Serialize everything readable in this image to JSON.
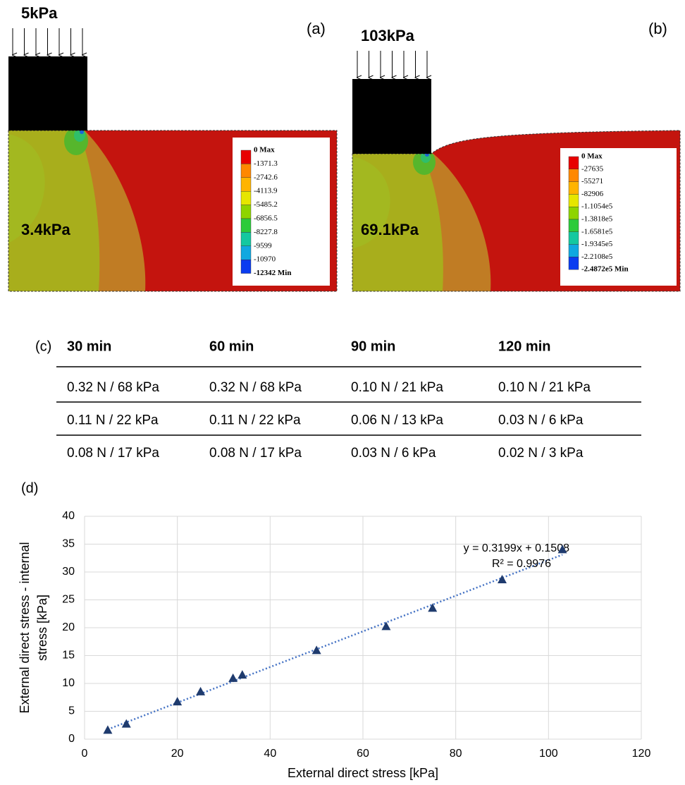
{
  "panel_a": {
    "label": "(a)",
    "load": "5kPa",
    "internal": "3.4kPa",
    "legend": [
      "0 Max",
      "-1371.3",
      "-2742.6",
      "-4113.9",
      "-5485.2",
      "-6856.5",
      "-8227.8",
      "-9599",
      "-10970",
      "-12342 Min"
    ]
  },
  "panel_b": {
    "label": "(b)",
    "load": "103kPa",
    "internal": "69.1kPa",
    "legend": [
      "0 Max",
      "-27635",
      "-55271",
      "-82906",
      "-1.1054e5",
      "-1.3818e5",
      "-1.6581e5",
      "-1.9345e5",
      "-2.2108e5",
      "-2.4872e5 Min"
    ]
  },
  "table": {
    "label": "(c)",
    "headers": [
      "30 min",
      "60 min",
      "90 min",
      "120 min"
    ],
    "rows": [
      [
        "0.32 N / 68 kPa",
        "0.32 N / 68 kPa",
        "0.10 N / 21 kPa",
        "0.10 N / 21 kPa"
      ],
      [
        "0.11 N / 22 kPa",
        "0.11 N / 22 kPa",
        "0.06 N / 13 kPa",
        "0.03 N / 6 kPa"
      ],
      [
        "0.08 N / 17 kPa",
        "0.08 N / 17 kPa",
        "0.03 N / 6 kPa",
        "0.02 N / 3 kPa"
      ]
    ]
  },
  "chart_data": {
    "type": "scatter",
    "label": "(d)",
    "xlabel": "External direct stress [kPa]",
    "ylabel": [
      "External direct stress - internal",
      "stress [kPa]"
    ],
    "x": [
      5,
      9,
      20,
      25,
      32,
      34,
      50,
      65,
      75,
      90,
      103
    ],
    "values": [
      1.6,
      2.7,
      6.7,
      8.5,
      10.9,
      11.5,
      15.9,
      20.2,
      23.5,
      28.6,
      34
    ],
    "color": "#1f3b6e",
    "trendline": {
      "equation": "y = 0.3199x + 0.1508",
      "r2": "R² = 0.9976",
      "color": "#4472c4"
    },
    "xlim": [
      0,
      120
    ],
    "xticks": [
      0,
      20,
      40,
      60,
      80,
      100,
      120
    ],
    "ylim": [
      0,
      40
    ],
    "yticks": [
      0,
      5,
      10,
      15,
      20,
      25,
      30,
      35,
      40
    ],
    "grid": true
  }
}
